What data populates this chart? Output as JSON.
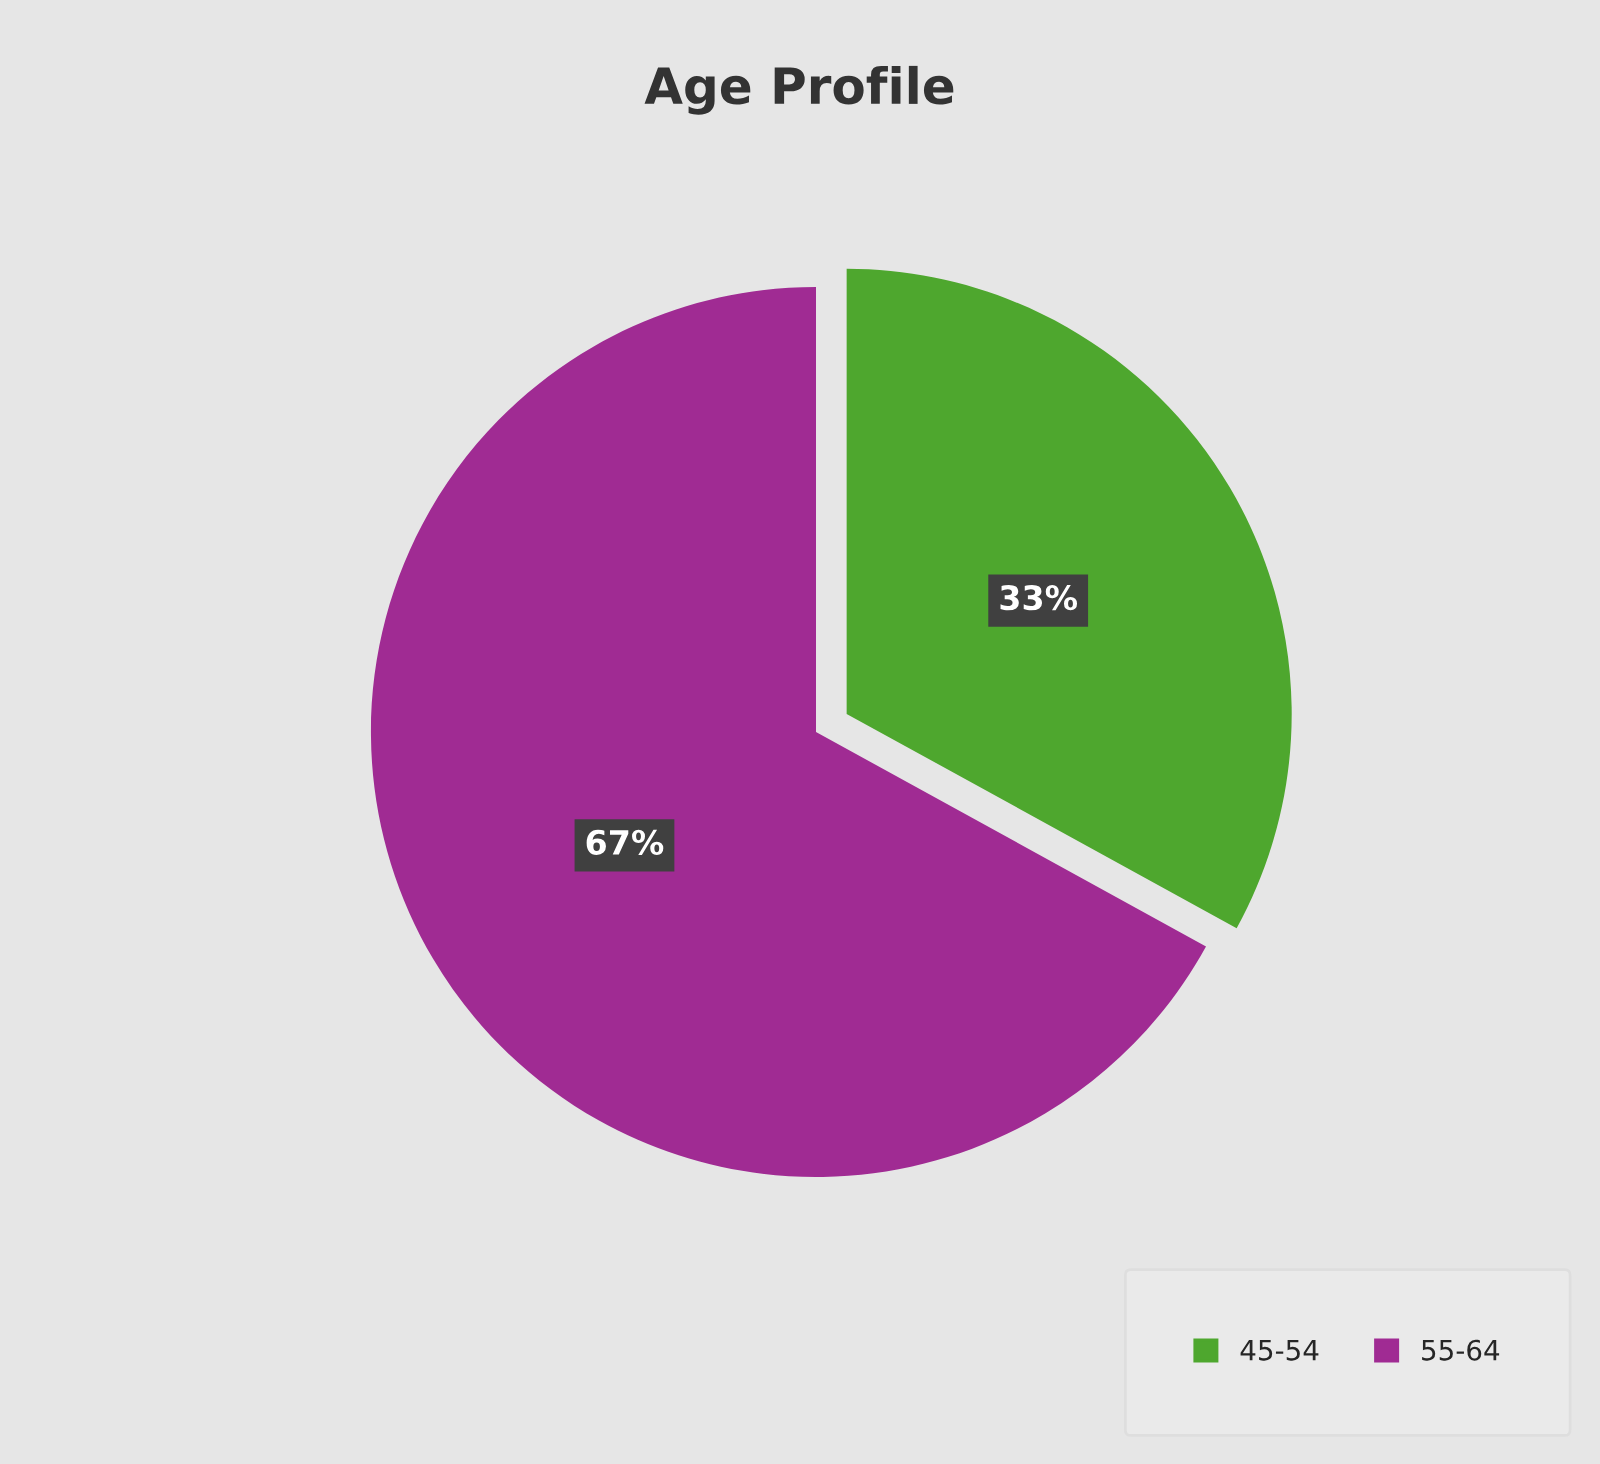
{
  "chart_data": {
    "type": "pie",
    "title": "Age Profile",
    "categories": [
      "45-54",
      "55-64"
    ],
    "values": [
      33,
      67
    ],
    "colors": [
      "#4ea72e",
      "#a02b93"
    ],
    "value_labels": [
      "33%",
      "67%"
    ],
    "legend": "bottom right"
  }
}
